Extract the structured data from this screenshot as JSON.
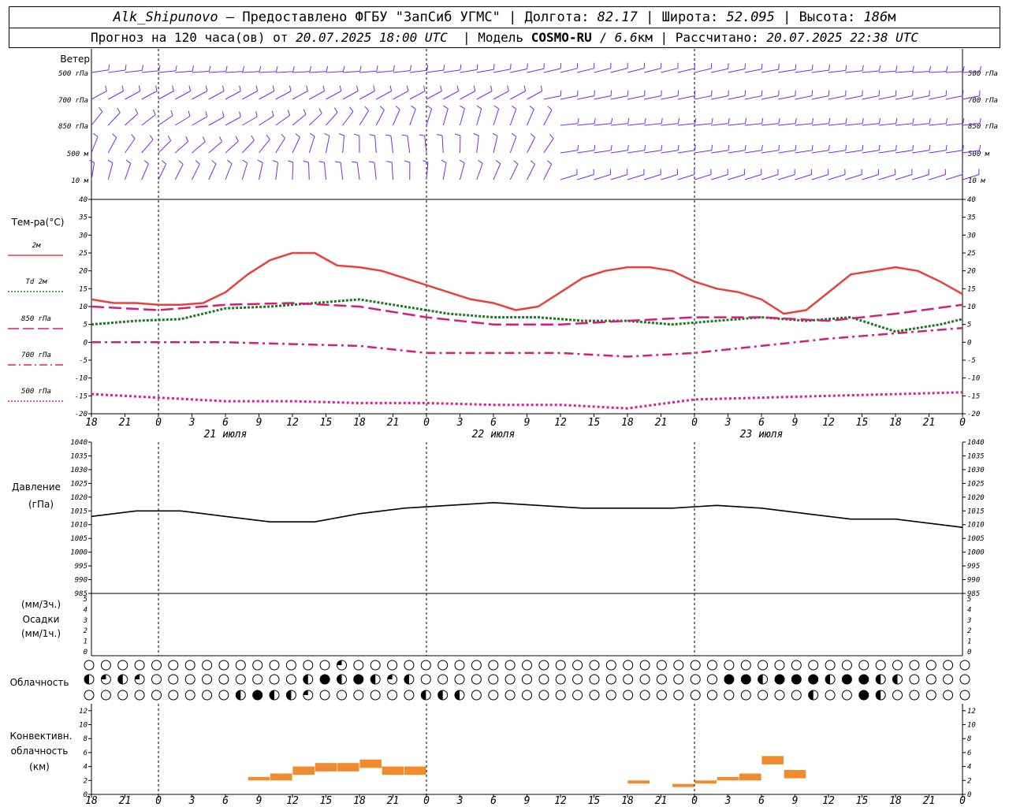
{
  "header": {
    "station": "Alk_Shipunovo",
    "provider": " – Предоставлено ФГБУ \"ЗапСиб УГМС\" | Долгота: ",
    "lon": "82.17",
    "lat_label": " | Широта: ",
    "lat": "52.095",
    "alt_label": " | Высота: ",
    "alt": "186",
    "alt_unit": "м",
    "forecast_label": "Прогноз на 120 часа(ов) от ",
    "forecast_from": "20.07.2025 18:00 UTC",
    "model_label": "  | Модель ",
    "model": "COSMO-RU",
    "model_sep": " / ",
    "model_res": "6.6",
    "model_res_unit": "км",
    "calc_label": " | Рассчитано: ",
    "calc_time": "20.07.2025 22:38 UTC"
  },
  "x_axis": {
    "hour_ticks": [
      "18",
      "21",
      "0",
      "3",
      "6",
      "9",
      "12",
      "15",
      "18",
      "21",
      "0",
      "3",
      "6",
      "9",
      "12",
      "15",
      "18",
      "21",
      "0",
      "3",
      "6",
      "9",
      "12",
      "15",
      "18",
      "21",
      "0"
    ],
    "days": [
      "21 июля",
      "22 июля",
      "23 июля"
    ]
  },
  "wind_panel": {
    "title": "Ветер",
    "levels": [
      "500 гПа",
      "700 гПа",
      "850 гПа",
      "500 м",
      "10 м"
    ],
    "right_levels": [
      "500 гПа",
      "700 гПа",
      "850 гПа",
      "500 м",
      "10 м"
    ],
    "color": "#7a2be0"
  },
  "temp_panel": {
    "title": "Тем-ра(°C)",
    "legend": [
      {
        "name": "2м",
        "color": "#e8413a",
        "dash": "solid"
      },
      {
        "name_prefix": "Td",
        "name": "2м",
        "color": "#1a7a1a",
        "dash": "dot"
      },
      {
        "name": "850 гПа",
        "color": "#d81b7f",
        "dash": "long"
      },
      {
        "name": "700 гПа",
        "color": "#d81b7f",
        "dash": "dashdot"
      },
      {
        "name": "500 гПа",
        "color": "#e0189a",
        "dash": "dot"
      }
    ],
    "yticks": [
      "40",
      "35",
      "30",
      "25",
      "20",
      "15",
      "10",
      "5",
      "0",
      "-5",
      "-10",
      "-15",
      "-20"
    ]
  },
  "pressure_panel": {
    "title": "Давление",
    "unit": "(гПа)",
    "yticks": [
      "1040",
      "1035",
      "1030",
      "1025",
      "1020",
      "1015",
      "1010",
      "1005",
      "1000",
      "995",
      "990",
      "985"
    ]
  },
  "precip_panel": {
    "unit1": "(мм/3ч.)",
    "title": "Осадки",
    "unit2": "(мм/1ч.)",
    "yticks": [
      "5",
      "4",
      "3",
      "2",
      "1",
      "0"
    ]
  },
  "cloud_panel": {
    "title": "Облачность"
  },
  "conv_panel": {
    "title1": "Конвективн.",
    "title2": "облачность",
    "unit": "(км)",
    "yticks": [
      "12",
      "10",
      "8",
      "6",
      "4",
      "2",
      "0"
    ],
    "color": "#f08c2e"
  },
  "chart_data": {
    "type": "line",
    "x_hours_from_start": [
      0,
      3,
      6,
      9,
      12,
      15,
      18,
      21,
      24,
      27,
      30,
      33,
      36,
      39,
      42,
      45,
      48,
      51,
      54,
      57,
      60,
      63,
      66,
      69,
      72,
      75,
      78
    ],
    "series": [
      {
        "name": "2м",
        "hours": [
          0,
          2,
          4,
          6,
          8,
          10,
          12,
          14,
          16,
          18,
          20,
          22,
          24,
          26,
          28,
          30,
          32,
          34,
          36,
          38,
          40,
          42,
          44,
          46,
          48,
          50,
          52,
          54,
          56,
          58,
          60,
          62,
          64,
          66,
          68,
          70,
          72,
          74,
          76,
          78
        ],
        "values": [
          12,
          11,
          11,
          10.5,
          10.5,
          11,
          14,
          19,
          23,
          25,
          25,
          21.5,
          21,
          20,
          18,
          16,
          14,
          12,
          11,
          9,
          10,
          14,
          18,
          20,
          21,
          21,
          20,
          17,
          15,
          14,
          12,
          8,
          9,
          14,
          19,
          20,
          21,
          20,
          17,
          13.5
        ]
      },
      {
        "name": "Td 2м",
        "hours": [
          0,
          4,
          8,
          12,
          16,
          20,
          24,
          28,
          32,
          36,
          40,
          44,
          48,
          52,
          56,
          60,
          64,
          68,
          72,
          76,
          78
        ],
        "values": [
          5,
          6,
          6.5,
          9.5,
          10,
          11,
          12,
          10,
          8,
          7,
          7,
          6,
          6,
          5,
          6,
          7,
          6,
          7,
          3,
          5,
          6.5
        ]
      },
      {
        "name": "850 гПа",
        "hours": [
          0,
          6,
          12,
          18,
          24,
          30,
          36,
          42,
          48,
          54,
          60,
          66,
          72,
          78
        ],
        "values": [
          10,
          9,
          10.5,
          11,
          10,
          7,
          5,
          5,
          6,
          7,
          7,
          6,
          8,
          10.5
        ]
      },
      {
        "name": "700 гПа",
        "hours": [
          0,
          6,
          12,
          18,
          24,
          30,
          36,
          42,
          48,
          54,
          60,
          66,
          72,
          78
        ],
        "values": [
          0,
          0,
          0,
          -0.5,
          -1,
          -3,
          -3,
          -3,
          -4,
          -3,
          -1,
          1,
          2.5,
          4
        ]
      },
      {
        "name": "500 гПа",
        "hours": [
          0,
          6,
          12,
          18,
          24,
          30,
          36,
          42,
          48,
          54,
          60,
          66,
          72,
          78
        ],
        "values": [
          -14.5,
          -15.5,
          -16.5,
          -16.5,
          -17,
          -17,
          -17.5,
          -17.5,
          -18.5,
          -16,
          -15.5,
          -15,
          -14.5,
          -14
        ]
      },
      {
        "name": "Давление",
        "hours": [
          0,
          4,
          8,
          12,
          16,
          20,
          24,
          28,
          32,
          36,
          40,
          44,
          48,
          52,
          56,
          60,
          64,
          68,
          72,
          76,
          78
        ],
        "values": [
          1013,
          1015,
          1015,
          1013,
          1011,
          1011,
          1014,
          1016,
          1017,
          1018,
          1017,
          1016,
          1016,
          1016,
          1017,
          1016,
          1014,
          1012,
          1012,
          1010,
          1009
        ]
      },
      {
        "name": "Конвективн. облачность",
        "hours": [
          15,
          17,
          19,
          21,
          23,
          25,
          27,
          29,
          49,
          53,
          55,
          57,
          59,
          61,
          63
        ],
        "values": [
          2.5,
          3,
          4,
          4.5,
          4.5,
          5,
          4,
          4,
          2,
          1.5,
          2,
          2.5,
          3,
          5.5,
          3.5
        ]
      }
    ],
    "ylim_temp": [
      -20,
      40
    ],
    "ylim_pressure": [
      985,
      1040
    ],
    "ylim_precip": [
      0,
      5
    ],
    "ylim_conv": [
      0,
      13
    ],
    "precip_values_all_zero": true
  }
}
